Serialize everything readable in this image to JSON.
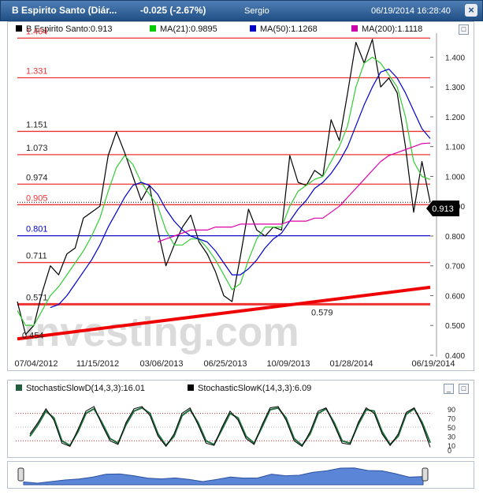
{
  "header": {
    "title": "B Espirito Santo (Diár...",
    "change": "-0.025 (-2.67%)",
    "user": "Sergio",
    "datetime": "06/19/2014 16:28:40"
  },
  "main_legend": [
    {
      "label": "B Espirito Santo:0.913",
      "color": "#000000"
    },
    {
      "label": "MA(21):0.9895",
      "color": "#00cc00"
    },
    {
      "label": "MA(50):1.1268",
      "color": "#0000cc"
    },
    {
      "label": "MA(200):1.1118",
      "color": "#cc00aa"
    }
  ],
  "stoch_legend": [
    {
      "label": "StochasticSlowD(14,3,3):16.01",
      "color": "#1f5f3f"
    },
    {
      "label": "StochasticSlowK(14,3,3):6.09",
      "color": "#000000"
    }
  ],
  "watermark": "investing.com",
  "current_price_label": "0.913",
  "colors": {
    "price": "#000000",
    "ma21": "#33cc33",
    "ma50": "#0000cc",
    "ma200": "#dd00aa",
    "fib": "#ee3333",
    "support": "#0000cc",
    "trend": "#ee0000"
  },
  "chart_data": {
    "type": "line",
    "x_ticks": [
      "07/04/2012",
      "11/15/2012",
      "03/06/2013",
      "06/25/2013",
      "10/09/2013",
      "01/28/2014",
      "06/19/2014"
    ],
    "ylim": [
      0.4,
      1.47
    ],
    "y_ticks": [
      "1.400",
      "1.300",
      "1.200",
      "1.100",
      "1.000",
      "0.900",
      "0.800",
      "0.700",
      "0.600",
      "0.500",
      "0.400"
    ],
    "levels": [
      {
        "label": "1.464",
        "value": 1.464,
        "color": "red"
      },
      {
        "label": "1.331",
        "value": 1.331,
        "color": "red"
      },
      {
        "label": "1.151",
        "value": 1.151,
        "color": "black"
      },
      {
        "label": "1.073",
        "value": 1.073,
        "color": "black"
      },
      {
        "label": "0.974",
        "value": 0.974,
        "color": "black"
      },
      {
        "label": "0.905",
        "value": 0.905,
        "color": "red"
      },
      {
        "label": "0.801",
        "value": 0.801,
        "color": "blue"
      },
      {
        "label": "0.711",
        "value": 0.711,
        "color": "black"
      },
      {
        "label": "0.571",
        "value": 0.571,
        "color": "black"
      }
    ],
    "annotations": [
      {
        "label": "0.579",
        "at": "09/2013"
      },
      {
        "label": "0.454",
        "at": "07/2012"
      }
    ],
    "trendline": {
      "start": [
        "07/04/2012",
        0.455
      ],
      "end": [
        "06/19/2014",
        0.628
      ]
    },
    "series": [
      {
        "name": "B Espirito Santo",
        "values": [
          0.58,
          0.47,
          0.5,
          0.61,
          0.7,
          0.67,
          0.74,
          0.76,
          0.86,
          0.88,
          0.9,
          1.07,
          1.15,
          1.08,
          1.0,
          0.92,
          0.97,
          0.82,
          0.7,
          0.77,
          0.83,
          0.87,
          0.78,
          0.74,
          0.68,
          0.6,
          0.58,
          0.73,
          0.89,
          0.82,
          0.8,
          0.83,
          0.82,
          1.07,
          0.98,
          0.97,
          1.02,
          1.0,
          1.19,
          1.12,
          1.28,
          1.45,
          1.38,
          1.46,
          1.3,
          1.33,
          1.28,
          1.1,
          0.88,
          1.05,
          0.913
        ]
      },
      {
        "name": "MA(21)",
        "values": [
          0.55,
          0.5,
          0.5,
          0.55,
          0.6,
          0.63,
          0.67,
          0.71,
          0.75,
          0.8,
          0.86,
          0.95,
          1.03,
          1.07,
          1.04,
          0.98,
          0.94,
          0.9,
          0.82,
          0.77,
          0.77,
          0.79,
          0.79,
          0.76,
          0.72,
          0.67,
          0.62,
          0.64,
          0.72,
          0.79,
          0.83,
          0.83,
          0.83,
          0.9,
          0.95,
          0.97,
          0.99,
          1.0,
          1.05,
          1.1,
          1.17,
          1.3,
          1.38,
          1.4,
          1.38,
          1.34,
          1.3,
          1.2,
          1.05,
          1.0,
          0.99
        ]
      },
      {
        "name": "MA(50)",
        "values": [
          null,
          null,
          null,
          null,
          0.56,
          0.57,
          0.6,
          0.64,
          0.68,
          0.72,
          0.77,
          0.83,
          0.88,
          0.93,
          0.97,
          0.98,
          0.97,
          0.94,
          0.89,
          0.85,
          0.82,
          0.8,
          0.79,
          0.78,
          0.75,
          0.71,
          0.67,
          0.67,
          0.69,
          0.72,
          0.76,
          0.79,
          0.81,
          0.85,
          0.89,
          0.92,
          0.96,
          0.98,
          1.01,
          1.05,
          1.1,
          1.17,
          1.24,
          1.3,
          1.35,
          1.36,
          1.33,
          1.28,
          1.22,
          1.16,
          1.127
        ]
      },
      {
        "name": "MA(200)",
        "values": [
          null,
          null,
          null,
          null,
          null,
          null,
          null,
          null,
          null,
          null,
          null,
          null,
          null,
          null,
          null,
          null,
          null,
          0.78,
          0.79,
          0.8,
          0.81,
          0.82,
          0.82,
          0.82,
          0.83,
          0.83,
          0.83,
          0.84,
          0.84,
          0.84,
          0.84,
          0.84,
          0.84,
          0.85,
          0.85,
          0.85,
          0.86,
          0.86,
          0.88,
          0.9,
          0.93,
          0.96,
          0.99,
          1.02,
          1.05,
          1.07,
          1.08,
          1.09,
          1.1,
          1.11,
          1.112
        ]
      }
    ]
  },
  "stochastic": {
    "ylim": [
      0,
      100
    ],
    "y_ticks": [
      "90",
      "70",
      "50",
      "30",
      "10",
      "0"
    ],
    "overbought": 80,
    "oversold": 20,
    "series": [
      {
        "name": "StochasticSlowD",
        "values": [
          30,
          55,
          85,
          70,
          20,
          10,
          40,
          80,
          90,
          60,
          25,
          15,
          55,
          85,
          92,
          80,
          35,
          10,
          30,
          75,
          88,
          60,
          20,
          12,
          45,
          80,
          70,
          30,
          15,
          50,
          88,
          92,
          70,
          25,
          10,
          35,
          80,
          90,
          60,
          20,
          15,
          55,
          88,
          85,
          40,
          12,
          30,
          78,
          90,
          60,
          16
        ]
      },
      {
        "name": "StochasticSlowK",
        "values": [
          35,
          60,
          90,
          65,
          15,
          8,
          45,
          85,
          95,
          55,
          20,
          12,
          60,
          90,
          95,
          75,
          30,
          8,
          35,
          80,
          92,
          55,
          15,
          10,
          50,
          85,
          65,
          25,
          12,
          55,
          92,
          95,
          65,
          20,
          8,
          40,
          85,
          92,
          55,
          15,
          12,
          60,
          92,
          80,
          35,
          10,
          35,
          82,
          92,
          55,
          6
        ]
      }
    ]
  },
  "navigator": {
    "values": [
      0.58,
      0.5,
      0.6,
      0.7,
      0.76,
      0.88,
      1.07,
      1.08,
      0.97,
      0.82,
      0.77,
      0.83,
      0.74,
      0.6,
      0.73,
      0.89,
      0.82,
      0.83,
      1.07,
      0.97,
      1.0,
      1.19,
      1.28,
      1.45,
      1.46,
      1.3,
      1.28,
      1.1,
      0.88,
      0.913
    ]
  }
}
